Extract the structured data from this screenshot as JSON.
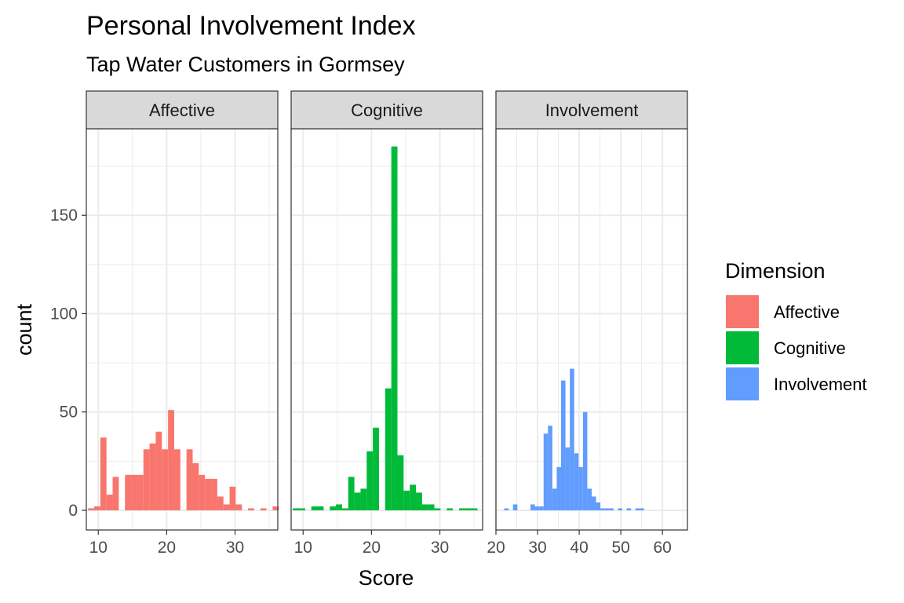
{
  "chart_data": {
    "type": "bar",
    "title": "Personal Involvement Index",
    "subtitle": "Tap Water Customers in Gormsey",
    "xlabel": "Score",
    "ylabel": "count",
    "ylim": [
      -10,
      194
    ],
    "yticks": [
      0,
      50,
      100,
      150
    ],
    "grid": true,
    "legend": {
      "title": "Dimension",
      "placement": "right",
      "entries": [
        {
          "label": "Affective",
          "color": "#F8766D"
        },
        {
          "label": "Cognitive",
          "color": "#00BA38"
        },
        {
          "label": "Involvement",
          "color": "#619CFF"
        }
      ]
    },
    "facets": [
      {
        "name": "Affective",
        "color": "#F8766D",
        "xlim": [
          8.25,
          36.25
        ],
        "xticks": [
          10,
          20,
          30
        ],
        "bin_start": 8.5,
        "bin_width": 0.9,
        "counts": [
          1,
          2,
          37,
          8,
          17,
          0,
          18,
          18,
          18,
          31,
          34,
          40,
          31,
          51,
          31,
          0,
          31,
          24,
          18,
          16,
          16,
          7,
          3,
          12,
          3,
          0,
          1,
          0,
          1,
          0,
          2
        ]
      },
      {
        "name": "Cognitive",
        "color": "#00BA38",
        "xlim": [
          8.25,
          36.25
        ],
        "xticks": [
          10,
          20,
          30
        ],
        "bin_start": 8.5,
        "bin_width": 0.9,
        "counts": [
          1,
          1,
          0,
          2,
          2,
          0,
          2,
          3,
          1,
          17,
          9,
          11,
          30,
          42,
          0,
          62,
          185,
          28,
          10,
          13,
          9,
          3,
          3,
          1,
          0,
          1,
          0,
          1,
          1,
          1
        ]
      },
      {
        "name": "Involvement",
        "color": "#619CFF",
        "xlim": [
          20,
          66
        ],
        "xticks": [
          20,
          30,
          40,
          50,
          60
        ],
        "bin_start": 22,
        "bin_width": 1.05,
        "counts": [
          1,
          0,
          3,
          0,
          0,
          0,
          3,
          2,
          2,
          39,
          43,
          11,
          22,
          66,
          32,
          72,
          29,
          22,
          50,
          11,
          7,
          4,
          1,
          1,
          1,
          0,
          1,
          0,
          1,
          0,
          1,
          1
        ]
      }
    ]
  }
}
